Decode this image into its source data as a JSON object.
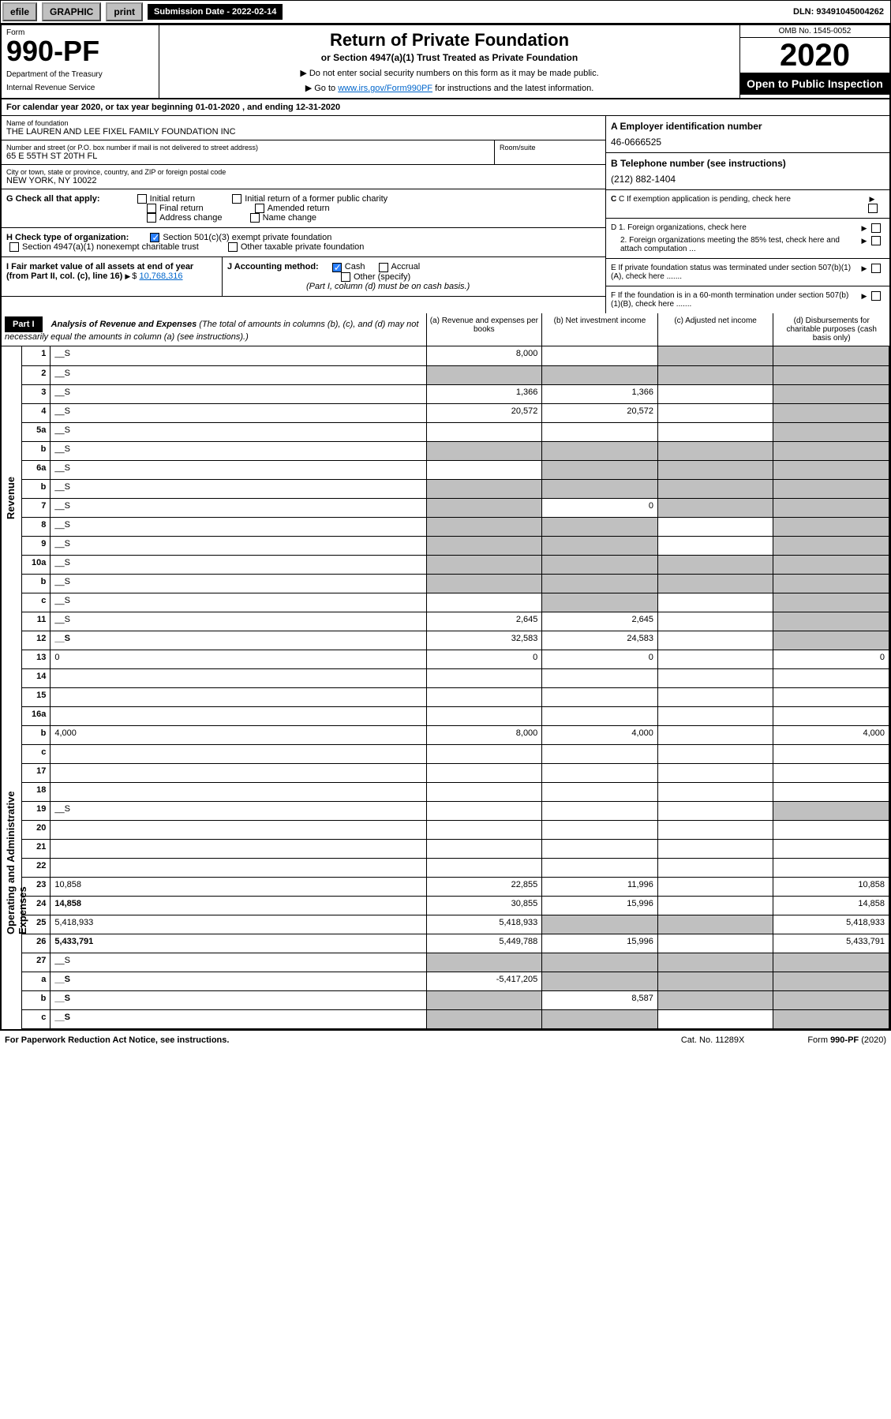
{
  "topbar": {
    "efile": "efile",
    "graphic": "GRAPHIC",
    "print": "print",
    "submission_label": "Submission Date - 2022-02-14",
    "dln_label": "DLN: 93491045004262"
  },
  "header": {
    "form_word": "Form",
    "form_number": "990-PF",
    "dept1": "Department of the Treasury",
    "dept2": "Internal Revenue Service",
    "title": "Return of Private Foundation",
    "subtitle": "or Section 4947(a)(1) Trust Treated as Private Foundation",
    "instr1": "▶ Do not enter social security numbers on this form as it may be made public.",
    "instr2_pre": "▶ Go to ",
    "instr2_link": "www.irs.gov/Form990PF",
    "instr2_post": " for instructions and the latest information.",
    "omb": "OMB No. 1545-0052",
    "year": "2020",
    "open": "Open to Public Inspection"
  },
  "cal_year": "For calendar year 2020, or tax year beginning 01-01-2020            , and ending 12-31-2020",
  "name_block": {
    "lbl": "Name of foundation",
    "val": "THE LAUREN AND LEE FIXEL FAMILY FOUNDATION INC"
  },
  "addr_block": {
    "lbl": "Number and street (or P.O. box number if mail is not delivered to street address)",
    "val": "65 E 55TH ST 20TH FL",
    "room_lbl": "Room/suite"
  },
  "city_block": {
    "lbl": "City or town, state or province, country, and ZIP or foreign postal code",
    "val": "NEW YORK, NY  10022"
  },
  "ein": {
    "lbl": "A Employer identification number",
    "val": "46-0666525"
  },
  "phone": {
    "lbl": "B Telephone number (see instructions)",
    "val": "(212) 882-1404"
  },
  "c_exempt": "C If exemption application is pending, check here",
  "g": {
    "label": "G Check all that apply:",
    "opts": [
      "Initial return",
      "Final return",
      "Address change",
      "Initial return of a former public charity",
      "Amended return",
      "Name change"
    ]
  },
  "d1": "D 1. Foreign organizations, check here",
  "d2": "2. Foreign organizations meeting the 85% test, check here and attach computation ...",
  "e": "E  If private foundation status was terminated under section 507(b)(1)(A), check here .......",
  "h": {
    "label": "H Check type of organization:",
    "o1": "Section 501(c)(3) exempt private foundation",
    "o2": "Section 4947(a)(1) nonexempt charitable trust",
    "o3": "Other taxable private foundation"
  },
  "i": {
    "label": "I Fair market value of all assets at end of year (from Part II, col. (c), line 16)",
    "amount": "10,768,316"
  },
  "j": {
    "label": "J Accounting method:",
    "cash": "Cash",
    "accrual": "Accrual",
    "other": "Other (specify)",
    "note": "(Part I, column (d) must be on cash basis.)"
  },
  "f": "F  If the foundation is in a 60-month termination under section 507(b)(1)(B), check here .......",
  "part1": {
    "badge": "Part I",
    "title": "Analysis of Revenue and Expenses",
    "title_note": "(The total of amounts in columns (b), (c), and (d) may not necessarily equal the amounts in column (a) (see instructions).)",
    "col_a": "(a)  Revenue and expenses per books",
    "col_b": "(b)  Net investment income",
    "col_c": "(c)  Adjusted net income",
    "col_d": "(d)  Disbursements for charitable purposes (cash basis only)"
  },
  "side_labels": {
    "rev": "Revenue",
    "exp": "Operating and Administrative Expenses"
  },
  "rows": [
    {
      "n": "1",
      "d": "__S",
      "a": "8,000",
      "b": "",
      "c": "__S"
    },
    {
      "n": "2",
      "d": "__S",
      "a": "__S",
      "b": "__S",
      "c": "__S",
      "dotted": true
    },
    {
      "n": "3",
      "d": "__S",
      "a": "1,366",
      "b": "1,366",
      "c": ""
    },
    {
      "n": "4",
      "d": "__S",
      "a": "20,572",
      "b": "20,572",
      "c": ""
    },
    {
      "n": "5a",
      "d": "__S",
      "a": "",
      "b": "",
      "c": ""
    },
    {
      "n": "b",
      "d": "__S",
      "a": "__S",
      "b": "__S",
      "c": "__S"
    },
    {
      "n": "6a",
      "d": "__S",
      "a": "",
      "b": "__S",
      "c": "__S"
    },
    {
      "n": "b",
      "d": "__S",
      "a": "__S",
      "b": "__S",
      "c": "__S"
    },
    {
      "n": "7",
      "d": "__S",
      "a": "__S",
      "b": "0",
      "c": "__S"
    },
    {
      "n": "8",
      "d": "__S",
      "a": "__S",
      "b": "__S",
      "c": ""
    },
    {
      "n": "9",
      "d": "__S",
      "a": "__S",
      "b": "__S",
      "c": ""
    },
    {
      "n": "10a",
      "d": "__S",
      "a": "__S",
      "b": "__S",
      "c": "__S"
    },
    {
      "n": "b",
      "d": "__S",
      "a": "__S",
      "b": "__S",
      "c": "__S"
    },
    {
      "n": "c",
      "d": "__S",
      "a": "",
      "b": "__S",
      "c": ""
    },
    {
      "n": "11",
      "d": "__S",
      "a": "2,645",
      "b": "2,645",
      "c": ""
    },
    {
      "n": "12",
      "d": "__S",
      "a": "32,583",
      "b": "24,583",
      "c": "",
      "bold": true
    }
  ],
  "exp_rows": [
    {
      "n": "13",
      "d": "0",
      "a": "0",
      "b": "0",
      "c": ""
    },
    {
      "n": "14",
      "d": "",
      "a": "",
      "b": "",
      "c": ""
    },
    {
      "n": "15",
      "d": "",
      "a": "",
      "b": "",
      "c": ""
    },
    {
      "n": "16a",
      "d": "",
      "a": "",
      "b": "",
      "c": ""
    },
    {
      "n": "b",
      "d": "4,000",
      "a": "8,000",
      "b": "4,000",
      "c": ""
    },
    {
      "n": "c",
      "d": "",
      "a": "",
      "b": "",
      "c": ""
    },
    {
      "n": "17",
      "d": "",
      "a": "",
      "b": "",
      "c": ""
    },
    {
      "n": "18",
      "d": "",
      "a": "",
      "b": "",
      "c": ""
    },
    {
      "n": "19",
      "d": "__S",
      "a": "",
      "b": "",
      "c": ""
    },
    {
      "n": "20",
      "d": "",
      "a": "",
      "b": "",
      "c": ""
    },
    {
      "n": "21",
      "d": "",
      "a": "",
      "b": "",
      "c": ""
    },
    {
      "n": "22",
      "d": "",
      "a": "",
      "b": "",
      "c": ""
    },
    {
      "n": "23",
      "d": "10,858",
      "a": "22,855",
      "b": "11,996",
      "c": ""
    },
    {
      "n": "24",
      "d": "14,858",
      "a": "30,855",
      "b": "15,996",
      "c": "",
      "bold": true
    },
    {
      "n": "25",
      "d": "5,418,933",
      "a": "5,418,933",
      "b": "__S",
      "c": "__S"
    },
    {
      "n": "26",
      "d": "5,433,791",
      "a": "5,449,788",
      "b": "15,996",
      "c": "",
      "bold": true
    },
    {
      "n": "27",
      "d": "__S",
      "a": "__S",
      "b": "__S",
      "c": "__S"
    },
    {
      "n": "a",
      "d": "__S",
      "a": "-5,417,205",
      "b": "__S",
      "c": "__S",
      "bold": true
    },
    {
      "n": "b",
      "d": "__S",
      "a": "__S",
      "b": "8,587",
      "c": "__S",
      "bold": true
    },
    {
      "n": "c",
      "d": "__S",
      "a": "__S",
      "b": "__S",
      "c": "",
      "bold": true
    }
  ],
  "footer": {
    "left": "For Paperwork Reduction Act Notice, see instructions.",
    "mid": "Cat. No. 11289X",
    "right": "Form 990-PF (2020)"
  },
  "colors": {
    "header_black": "#000000",
    "link": "#0066cc",
    "checked": "#2a7fff",
    "shade": "#c0c0c0"
  }
}
